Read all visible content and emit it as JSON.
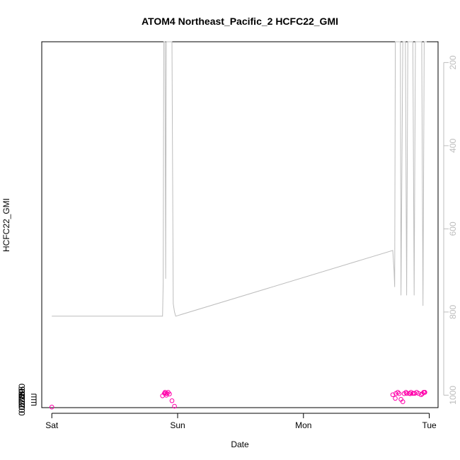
{
  "chart_data": {
    "type": "scatter",
    "title": "ATOM4 Northeast_Pacific_2 HCFC22_GMI",
    "xlabel": "Date",
    "ylabel": "HCFC22_GMI",
    "x_tick_labels": [
      "Sat",
      "Sun",
      "Mon",
      "Tue"
    ],
    "x_tick_values": [
      0,
      1,
      2,
      3
    ],
    "xlim": [
      -0.08,
      3.07
    ],
    "ylim": [
      0.2654,
      0.9342
    ],
    "y_ticks": [
      0.27,
      0.275,
      0.28,
      0.285,
      0.29
    ],
    "y_tick_labels": [
      "0.270",
      "0.275",
      "0.280",
      "0.285",
      "0.290"
    ],
    "y2_ticks": [
      200,
      400,
      600,
      800,
      1000
    ],
    "y2_tick_labels": [
      "200",
      "400",
      "600",
      "800",
      "1000"
    ],
    "y2lim": [
      1030,
      150
    ],
    "grid": false,
    "series": [
      {
        "kind": "points",
        "color": "#ff00aa",
        "x": [
          0.0,
          0.88,
          0.895,
          0.9,
          0.905,
          0.91,
          0.915,
          0.925,
          0.935,
          0.955,
          0.975,
          2.71,
          2.73,
          2.735,
          2.75,
          2.76,
          2.775,
          2.79,
          2.8,
          2.815,
          2.82,
          2.84,
          2.85,
          2.855,
          2.87,
          2.875,
          2.885,
          2.9,
          2.915,
          2.935,
          2.945,
          2.955,
          2.96,
          2.965
        ],
        "y": [
          0.2664,
          0.287,
          0.2915,
          0.2934,
          0.2912,
          0.2881,
          0.2913,
          0.2934,
          0.2903,
          0.278,
          0.268,
          0.289,
          0.2823,
          0.2913,
          0.2934,
          0.291,
          0.2806,
          0.2761,
          0.291,
          0.2934,
          0.2914,
          0.2914,
          0.2909,
          0.2934,
          0.2913,
          0.2916,
          0.2914,
          0.2934,
          0.2913,
          0.289,
          0.2908,
          0.2933,
          0.2934,
          0.2934
        ]
      },
      {
        "kind": "line",
        "axis": "right",
        "color": "#bdbdbd",
        "x": [
          0.0,
          0.88,
          0.885,
          0.89,
          0.895,
          0.9,
          0.905,
          0.91,
          0.915,
          0.925,
          0.935,
          0.945,
          0.955,
          0.965,
          0.975,
          0.985,
          0.985,
          2.71,
          2.72,
          2.725,
          2.73,
          2.735,
          2.745,
          2.755,
          2.77,
          2.775,
          2.79,
          2.8,
          2.81,
          2.82,
          2.83,
          2.84,
          2.85,
          2.855,
          2.86,
          2.87,
          2.88,
          2.89,
          2.9,
          2.905,
          2.91,
          2.92,
          2.93,
          2.94,
          2.95,
          2.96,
          2.97,
          2.975,
          2.98
        ],
        "y": [
          810,
          810,
          730,
          140,
          140,
          140,
          720,
          140,
          140,
          140,
          140,
          140,
          140,
          780,
          800,
          810,
          810,
          652,
          700,
          740,
          140,
          140,
          140,
          140,
          140,
          760,
          140,
          140,
          140,
          760,
          140,
          140,
          140,
          140,
          140,
          140,
          760,
          140,
          140,
          140,
          140,
          140,
          140,
          140,
          785,
          140,
          140,
          140,
          140
        ]
      }
    ]
  }
}
